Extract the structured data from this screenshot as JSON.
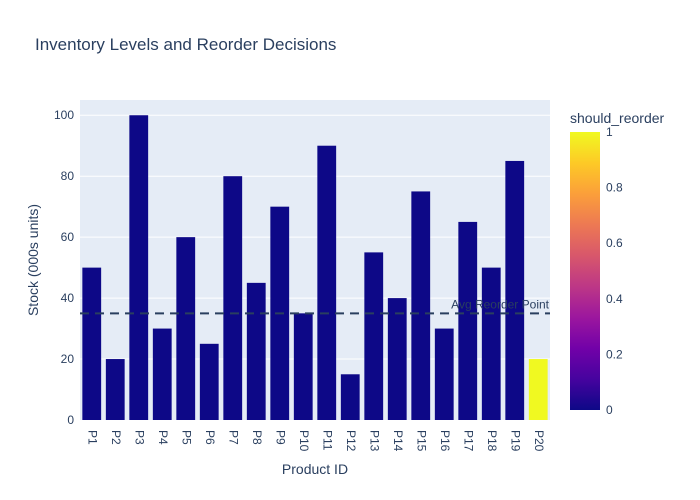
{
  "chart_data": {
    "type": "bar",
    "title": "Inventory Levels and Reorder Decisions",
    "xlabel": "Product ID",
    "ylabel": "Stock (000s units)",
    "ylim": [
      0,
      105
    ],
    "yticks": [
      0,
      20,
      40,
      60,
      80,
      100
    ],
    "categories": [
      "P1",
      "P2",
      "P3",
      "P4",
      "P5",
      "P6",
      "P7",
      "P8",
      "P9",
      "P10",
      "P11",
      "P12",
      "P13",
      "P14",
      "P15",
      "P16",
      "P17",
      "P18",
      "P19",
      "P20"
    ],
    "values": [
      50,
      20,
      100,
      30,
      60,
      25,
      80,
      45,
      70,
      35,
      90,
      15,
      55,
      40,
      75,
      30,
      65,
      50,
      85,
      20
    ],
    "color_values": [
      0,
      0,
      0,
      0,
      0,
      0,
      0,
      0,
      0,
      0,
      0,
      0,
      0,
      0,
      0,
      0,
      0,
      0,
      0,
      1
    ],
    "colorbar": {
      "title": "should_reorder",
      "range": [
        0,
        1
      ],
      "ticks": [
        "0",
        "0.2",
        "0.4",
        "0.6",
        "0.8",
        "1"
      ],
      "colors": [
        "#0d0887",
        "#46039f",
        "#7201a8",
        "#9c179e",
        "#bd3786",
        "#d8576b",
        "#ed7953",
        "#fb9f3a",
        "#fdca26",
        "#f0f921"
      ]
    },
    "reference_line": {
      "value": 35,
      "label": "Avg Reorder Point",
      "style": "dashed"
    },
    "grid": true,
    "plot_bg": "#e5ecf6"
  }
}
